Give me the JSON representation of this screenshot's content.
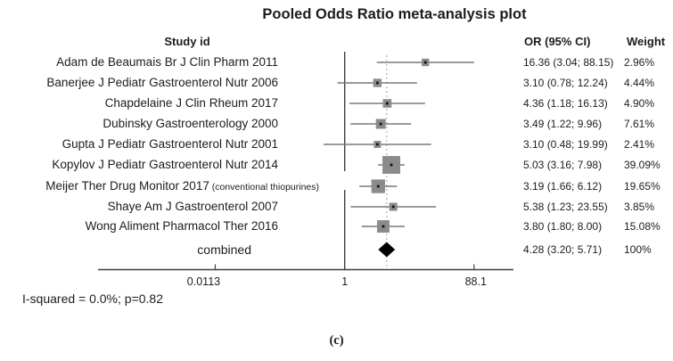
{
  "columns": {
    "study": "Study id",
    "or": "OR (95% CI)",
    "weight": "Weight"
  },
  "caption": "(c)",
  "colors": {
    "square": "#8b8b8b",
    "square_dot": "#111111",
    "whisker": "#787878",
    "diamond": "#000000",
    "axis": "#3f3f3f",
    "ref_line": "#3f3f3f",
    "pooled_dotted_line": "#b4b4b4",
    "text": "#1c1c1c"
  },
  "chart_data": {
    "type": "forest",
    "title": "Pooled Odds Ratio meta-analysis plot",
    "effect_measure": "OR",
    "x_scale": "log",
    "x_ticks": [
      0.0113,
      1,
      88.1
    ],
    "x_tick_labels": [
      "0.0113",
      "1",
      "88.1"
    ],
    "ref_line": 1,
    "pooled_line": 4.28,
    "heterogeneity": "I-squared = 0.0%; p=0.82",
    "studies": [
      {
        "label": "Adam de Beaumais Br J Clin Pharm 2011",
        "suffix": "",
        "or": 16.36,
        "ci_low": 3.04,
        "ci_high": 88.15,
        "or_text": "16.36 (3.04; 88.15)",
        "weight_pct": 2.96,
        "weight_text": "2.96%"
      },
      {
        "label": "Banerjee J Pediatr Gastroenterol Nutr 2006",
        "suffix": "",
        "or": 3.1,
        "ci_low": 0.78,
        "ci_high": 12.24,
        "or_text": "3.10 (0.78; 12.24)",
        "weight_pct": 4.44,
        "weight_text": "4.44%"
      },
      {
        "label": "Chapdelaine J Clin Rheum 2017",
        "suffix": "",
        "or": 4.36,
        "ci_low": 1.18,
        "ci_high": 16.13,
        "or_text": "4.36 (1.18; 16.13)",
        "weight_pct": 4.9,
        "weight_text": "4.90%"
      },
      {
        "label": "Dubinsky Gastroenterology 2000",
        "suffix": "",
        "or": 3.49,
        "ci_low": 1.22,
        "ci_high": 9.96,
        "or_text": "3.49 (1.22; 9.96)",
        "weight_pct": 7.61,
        "weight_text": "7.61%"
      },
      {
        "label": "Gupta J Pediatr Gastroenterol Nutr 2001",
        "suffix": "",
        "or": 3.1,
        "ci_low": 0.48,
        "ci_high": 19.99,
        "or_text": "3.10 (0.48; 19.99)",
        "weight_pct": 2.41,
        "weight_text": "2.41%"
      },
      {
        "label": "Kopylov J Pediatr Gastroenterol Nutr 2014",
        "suffix": "",
        "or": 5.03,
        "ci_low": 3.16,
        "ci_high": 7.98,
        "or_text": "5.03 (3.16; 7.98)",
        "weight_pct": 39.09,
        "weight_text": "39.09%"
      },
      {
        "label": "Meijer Ther Drug Monitor 2017",
        "suffix": "(conventional thiopurines)",
        "or": 3.19,
        "ci_low": 1.66,
        "ci_high": 6.12,
        "or_text": "3.19 (1.66; 6.12)",
        "weight_pct": 19.65,
        "weight_text": "19.65%"
      },
      {
        "label": "Shaye Am J Gastroenterol 2007",
        "suffix": "",
        "or": 5.38,
        "ci_low": 1.23,
        "ci_high": 23.55,
        "or_text": "5.38 (1.23; 23.55)",
        "weight_pct": 3.85,
        "weight_text": "3.85%"
      },
      {
        "label": "Wong Aliment Pharmacol Ther 2016",
        "suffix": "",
        "or": 3.8,
        "ci_low": 1.8,
        "ci_high": 8.0,
        "or_text": "3.80 (1.80; 8.00)",
        "weight_pct": 15.08,
        "weight_text": "15.08%"
      }
    ],
    "combined": {
      "label": "combined",
      "or": 4.28,
      "ci_low": 3.2,
      "ci_high": 5.71,
      "or_text": "4.28 (3.20; 5.71)",
      "weight_text": "100%"
    }
  }
}
